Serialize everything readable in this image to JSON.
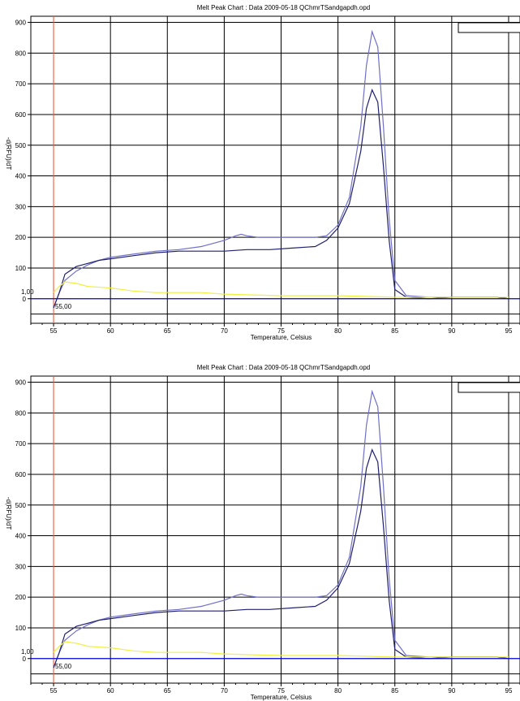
{
  "charts": [
    {
      "title": "Melt Peak Chart : Data 2009-05-18 QChmrTSandgapdh.opd",
      "xlabel": "Temperature, Celsius",
      "ylabel": "-d(RFU)/dT",
      "annotation_y": "1,00",
      "annotation_x": "55,00"
    },
    {
      "title": "Melt Peak Chart : Data 2009-05-18 QChmrTSandgapdh.opd",
      "xlabel": "Temperature, Celsius",
      "ylabel": "-d(RFU)/dT",
      "annotation_y": "1,00",
      "annotation_x": "55,00"
    }
  ],
  "chart_data": [
    {
      "type": "line",
      "title": "Melt Peak Chart : Data 2009-05-18 QChmrTSandgapdh.opd",
      "xlabel": "Temperature, Celsius",
      "ylabel": "-d(RFU)/dT",
      "xlim": [
        53,
        96
      ],
      "ylim": [
        -80,
        920
      ],
      "xticks": [
        55,
        60,
        65,
        70,
        75,
        80,
        85,
        90,
        95
      ],
      "yticks": [
        0,
        100,
        200,
        300,
        400,
        500,
        600,
        700,
        800,
        900
      ],
      "grid": true,
      "vline_x": 55,
      "series": [
        {
          "color": "#7070c8",
          "x": [
            55,
            55.5,
            56,
            57,
            58,
            59,
            60,
            62,
            64,
            66,
            68,
            70,
            71,
            71.5,
            72,
            73,
            75,
            77,
            78,
            79,
            80,
            81,
            82,
            82.5,
            83,
            83.5,
            84,
            84.5,
            85,
            86,
            88,
            90,
            92,
            94,
            95
          ],
          "y": [
            -30,
            20,
            60,
            90,
            110,
            125,
            135,
            145,
            155,
            160,
            170,
            190,
            205,
            210,
            205,
            200,
            200,
            200,
            200,
            205,
            240,
            330,
            560,
            760,
            870,
            820,
            560,
            260,
            60,
            10,
            5,
            5,
            5,
            5,
            0
          ]
        },
        {
          "color": "#202070",
          "x": [
            55,
            55.5,
            56,
            57,
            58,
            59,
            60,
            62,
            64,
            66,
            68,
            70,
            72,
            74,
            76,
            78,
            79,
            80,
            81,
            82,
            82.5,
            83,
            83.5,
            84,
            84.5,
            85,
            86,
            88,
            90,
            92,
            94,
            95
          ],
          "y": [
            -30,
            20,
            80,
            105,
            115,
            125,
            130,
            140,
            150,
            155,
            155,
            155,
            160,
            160,
            165,
            170,
            190,
            230,
            310,
            480,
            620,
            680,
            640,
            430,
            190,
            30,
            5,
            0,
            5,
            5,
            5,
            0
          ]
        },
        {
          "color": "#f0f040",
          "x": [
            55,
            55.5,
            56,
            57,
            58,
            60,
            62,
            64,
            66,
            68,
            70,
            75,
            80,
            85,
            90,
            95
          ],
          "y": [
            20,
            40,
            55,
            50,
            40,
            35,
            25,
            20,
            20,
            20,
            15,
            10,
            10,
            5,
            5,
            5
          ]
        },
        {
          "color": "#0000ff",
          "x": [
            53,
            96
          ],
          "y": [
            0,
            0
          ]
        }
      ]
    },
    {
      "type": "line",
      "title": "Melt Peak Chart : Data 2009-05-18 QChmrTSandgapdh.opd",
      "xlabel": "Temperature, Celsius",
      "ylabel": "-d(RFU)/dT",
      "xlim": [
        53,
        96
      ],
      "ylim": [
        -80,
        920
      ],
      "xticks": [
        55,
        60,
        65,
        70,
        75,
        80,
        85,
        90,
        95
      ],
      "yticks": [
        0,
        100,
        200,
        300,
        400,
        500,
        600,
        700,
        800,
        900
      ],
      "grid": true,
      "vline_x": 55,
      "series": [
        {
          "color": "#7070c8",
          "x": [
            55,
            55.5,
            56,
            57,
            58,
            59,
            60,
            62,
            64,
            66,
            68,
            70,
            71,
            71.5,
            72,
            73,
            75,
            77,
            78,
            79,
            80,
            81,
            82,
            82.5,
            83,
            83.5,
            84,
            84.5,
            85,
            86,
            88,
            90,
            92,
            94,
            95
          ],
          "y": [
            -30,
            20,
            60,
            90,
            110,
            125,
            135,
            145,
            155,
            160,
            170,
            190,
            205,
            210,
            205,
            200,
            200,
            200,
            200,
            205,
            240,
            330,
            560,
            760,
            870,
            820,
            560,
            260,
            60,
            10,
            5,
            5,
            5,
            5,
            0
          ]
        },
        {
          "color": "#202070",
          "x": [
            55,
            55.5,
            56,
            57,
            58,
            59,
            60,
            62,
            64,
            66,
            68,
            70,
            72,
            74,
            76,
            78,
            79,
            80,
            81,
            82,
            82.5,
            83,
            83.5,
            84,
            84.5,
            85,
            86,
            88,
            90,
            92,
            94,
            95
          ],
          "y": [
            -30,
            20,
            80,
            105,
            115,
            125,
            130,
            140,
            150,
            155,
            155,
            155,
            160,
            160,
            165,
            170,
            190,
            230,
            310,
            480,
            620,
            680,
            640,
            430,
            190,
            30,
            5,
            0,
            5,
            5,
            5,
            0
          ]
        },
        {
          "color": "#f0f040",
          "x": [
            55,
            55.5,
            56,
            57,
            58,
            60,
            62,
            64,
            66,
            68,
            70,
            75,
            80,
            85,
            90,
            95
          ],
          "y": [
            20,
            40,
            55,
            50,
            40,
            35,
            25,
            20,
            20,
            20,
            15,
            10,
            10,
            5,
            5,
            5
          ]
        },
        {
          "color": "#0000ff",
          "x": [
            53,
            96
          ],
          "y": [
            0,
            0
          ]
        }
      ]
    }
  ],
  "colors": {
    "grid": "#000000",
    "vline": "#ff6040",
    "frame": "#000000"
  }
}
